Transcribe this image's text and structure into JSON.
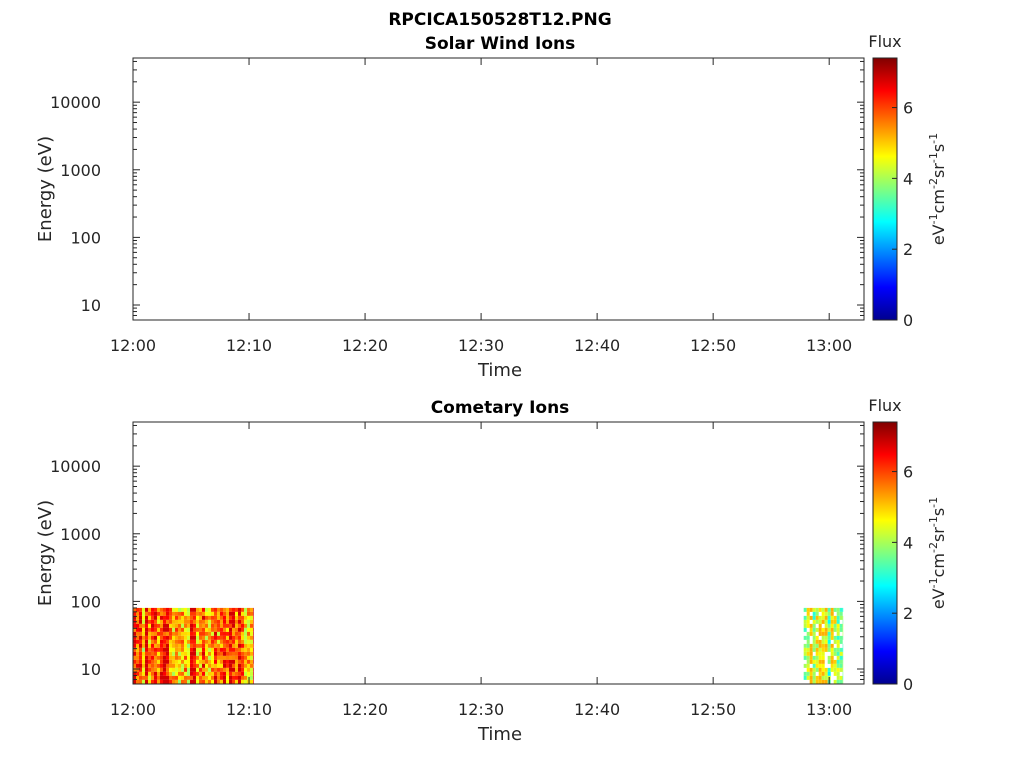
{
  "figure": {
    "title": "RPCICA150528T12.PNG"
  },
  "colorbar": {
    "label": "Flux",
    "ticks": [
      0,
      2,
      4,
      6
    ],
    "range": [
      0,
      7.4
    ],
    "colormap": "jet",
    "unit_parts": [
      {
        "text": "eV",
        "sup": false
      },
      {
        "text": "-1",
        "sup": true
      },
      {
        "text": "cm",
        "sup": false
      },
      {
        "text": "-2",
        "sup": true
      },
      {
        "text": "sr",
        "sup": false
      },
      {
        "text": "-1",
        "sup": true
      },
      {
        "text": "s",
        "sup": false
      },
      {
        "text": "-1",
        "sup": true
      }
    ]
  },
  "chart_data": [
    {
      "type": "heatmap",
      "title": "Solar Wind Ions",
      "xlabel": "Time",
      "ylabel": "Energy (eV)",
      "x_tick_labels": [
        "12:00",
        "12:10",
        "12:20",
        "12:30",
        "12:40",
        "12:50",
        "13:00"
      ],
      "x_tick_minutes": [
        0,
        10,
        20,
        30,
        40,
        50,
        60
      ],
      "xlim_minutes": [
        0,
        63
      ],
      "y_scale": "log",
      "y_tick_labels": [
        "10",
        "100",
        "1000",
        "10000"
      ],
      "y_tick_values": [
        10,
        100,
        1000,
        10000
      ],
      "ylim": [
        6,
        45000
      ],
      "color_range": [
        0,
        7.4
      ],
      "blocks": []
    },
    {
      "type": "heatmap",
      "title": "Cometary Ions",
      "xlabel": "Time",
      "ylabel": "Energy (eV)",
      "x_tick_labels": [
        "12:00",
        "12:10",
        "12:20",
        "12:30",
        "12:40",
        "12:50",
        "13:00"
      ],
      "x_tick_minutes": [
        0,
        10,
        20,
        30,
        40,
        50,
        60
      ],
      "xlim_minutes": [
        0,
        63
      ],
      "y_scale": "log",
      "y_tick_labels": [
        "10",
        "100",
        "1000",
        "10000"
      ],
      "y_tick_values": [
        10,
        100,
        1000,
        10000
      ],
      "ylim": [
        6,
        45000
      ],
      "color_range": [
        0,
        7.4
      ],
      "blocks": [
        {
          "start_min": 0.0,
          "end_min": 10.4,
          "energy_min_eV": 6,
          "energy_max_eV": 80,
          "flux_range": [
            3.5,
            6.8
          ],
          "typical_flux": 5.8
        },
        {
          "start_min": 57.8,
          "end_min": 61.2,
          "energy_min_eV": 6,
          "energy_max_eV": 80,
          "flux_range": [
            2.5,
            5.2
          ],
          "typical_flux": 4.3
        }
      ]
    }
  ]
}
